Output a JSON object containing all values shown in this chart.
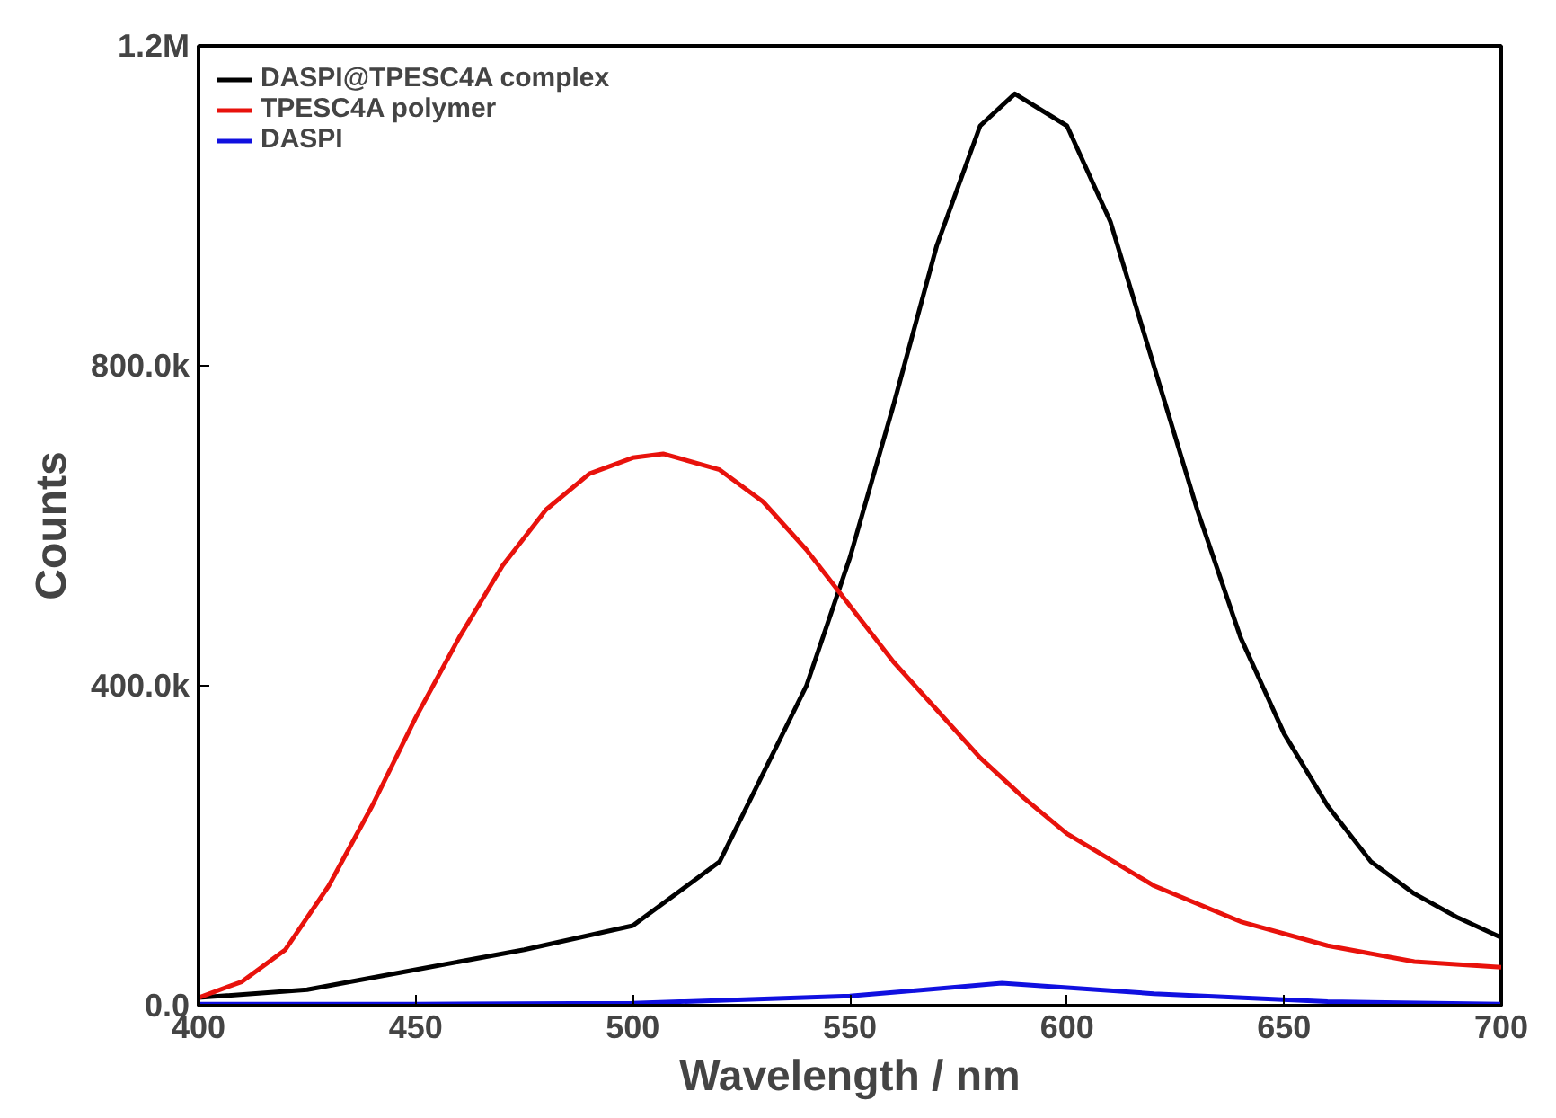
{
  "chart_data": {
    "type": "line",
    "xlabel": "Wavelength / nm",
    "ylabel": "Counts",
    "xlim": [
      400,
      700
    ],
    "ylim": [
      0,
      1200000
    ],
    "xticks": [
      400,
      450,
      500,
      550,
      600,
      650,
      700
    ],
    "yticks": [
      {
        "value": 0,
        "label": "0.0"
      },
      {
        "value": 400000,
        "label": "400.0k"
      },
      {
        "value": 800000,
        "label": "800.0k"
      },
      {
        "value": 1200000,
        "label": "1.2M"
      }
    ],
    "grid": false,
    "legend": "top left",
    "marker": "none",
    "line_style": "solid",
    "series": [
      {
        "name": "DASPI@TPESC4A complex",
        "color": "#000000",
        "x": [
          400,
          425,
          450,
          475,
          500,
          520,
          540,
          550,
          560,
          570,
          580,
          588,
          600,
          610,
          620,
          630,
          640,
          650,
          660,
          670,
          680,
          690,
          700
        ],
        "values": [
          10000,
          20000,
          45000,
          70000,
          100000,
          180000,
          400000,
          560000,
          750000,
          950000,
          1100000,
          1140000,
          1100000,
          980000,
          800000,
          620000,
          460000,
          340000,
          250000,
          180000,
          140000,
          110000,
          85000
        ]
      },
      {
        "name": "TPESC4A polymer",
        "color": "#e8120c",
        "x": [
          400,
          410,
          420,
          430,
          440,
          450,
          460,
          470,
          480,
          490,
          500,
          507,
          520,
          530,
          540,
          550,
          560,
          570,
          580,
          590,
          600,
          620,
          640,
          660,
          680,
          700
        ],
        "values": [
          10000,
          30000,
          70000,
          150000,
          250000,
          360000,
          460000,
          550000,
          620000,
          665000,
          685000,
          690000,
          670000,
          630000,
          570000,
          500000,
          430000,
          370000,
          310000,
          260000,
          215000,
          150000,
          105000,
          75000,
          55000,
          48000
        ]
      },
      {
        "name": "DASPI",
        "color": "#1010e0",
        "x": [
          400,
          450,
          500,
          550,
          585,
          620,
          660,
          700
        ],
        "values": [
          2000,
          2000,
          3000,
          12000,
          28000,
          15000,
          5000,
          2000
        ]
      }
    ]
  }
}
